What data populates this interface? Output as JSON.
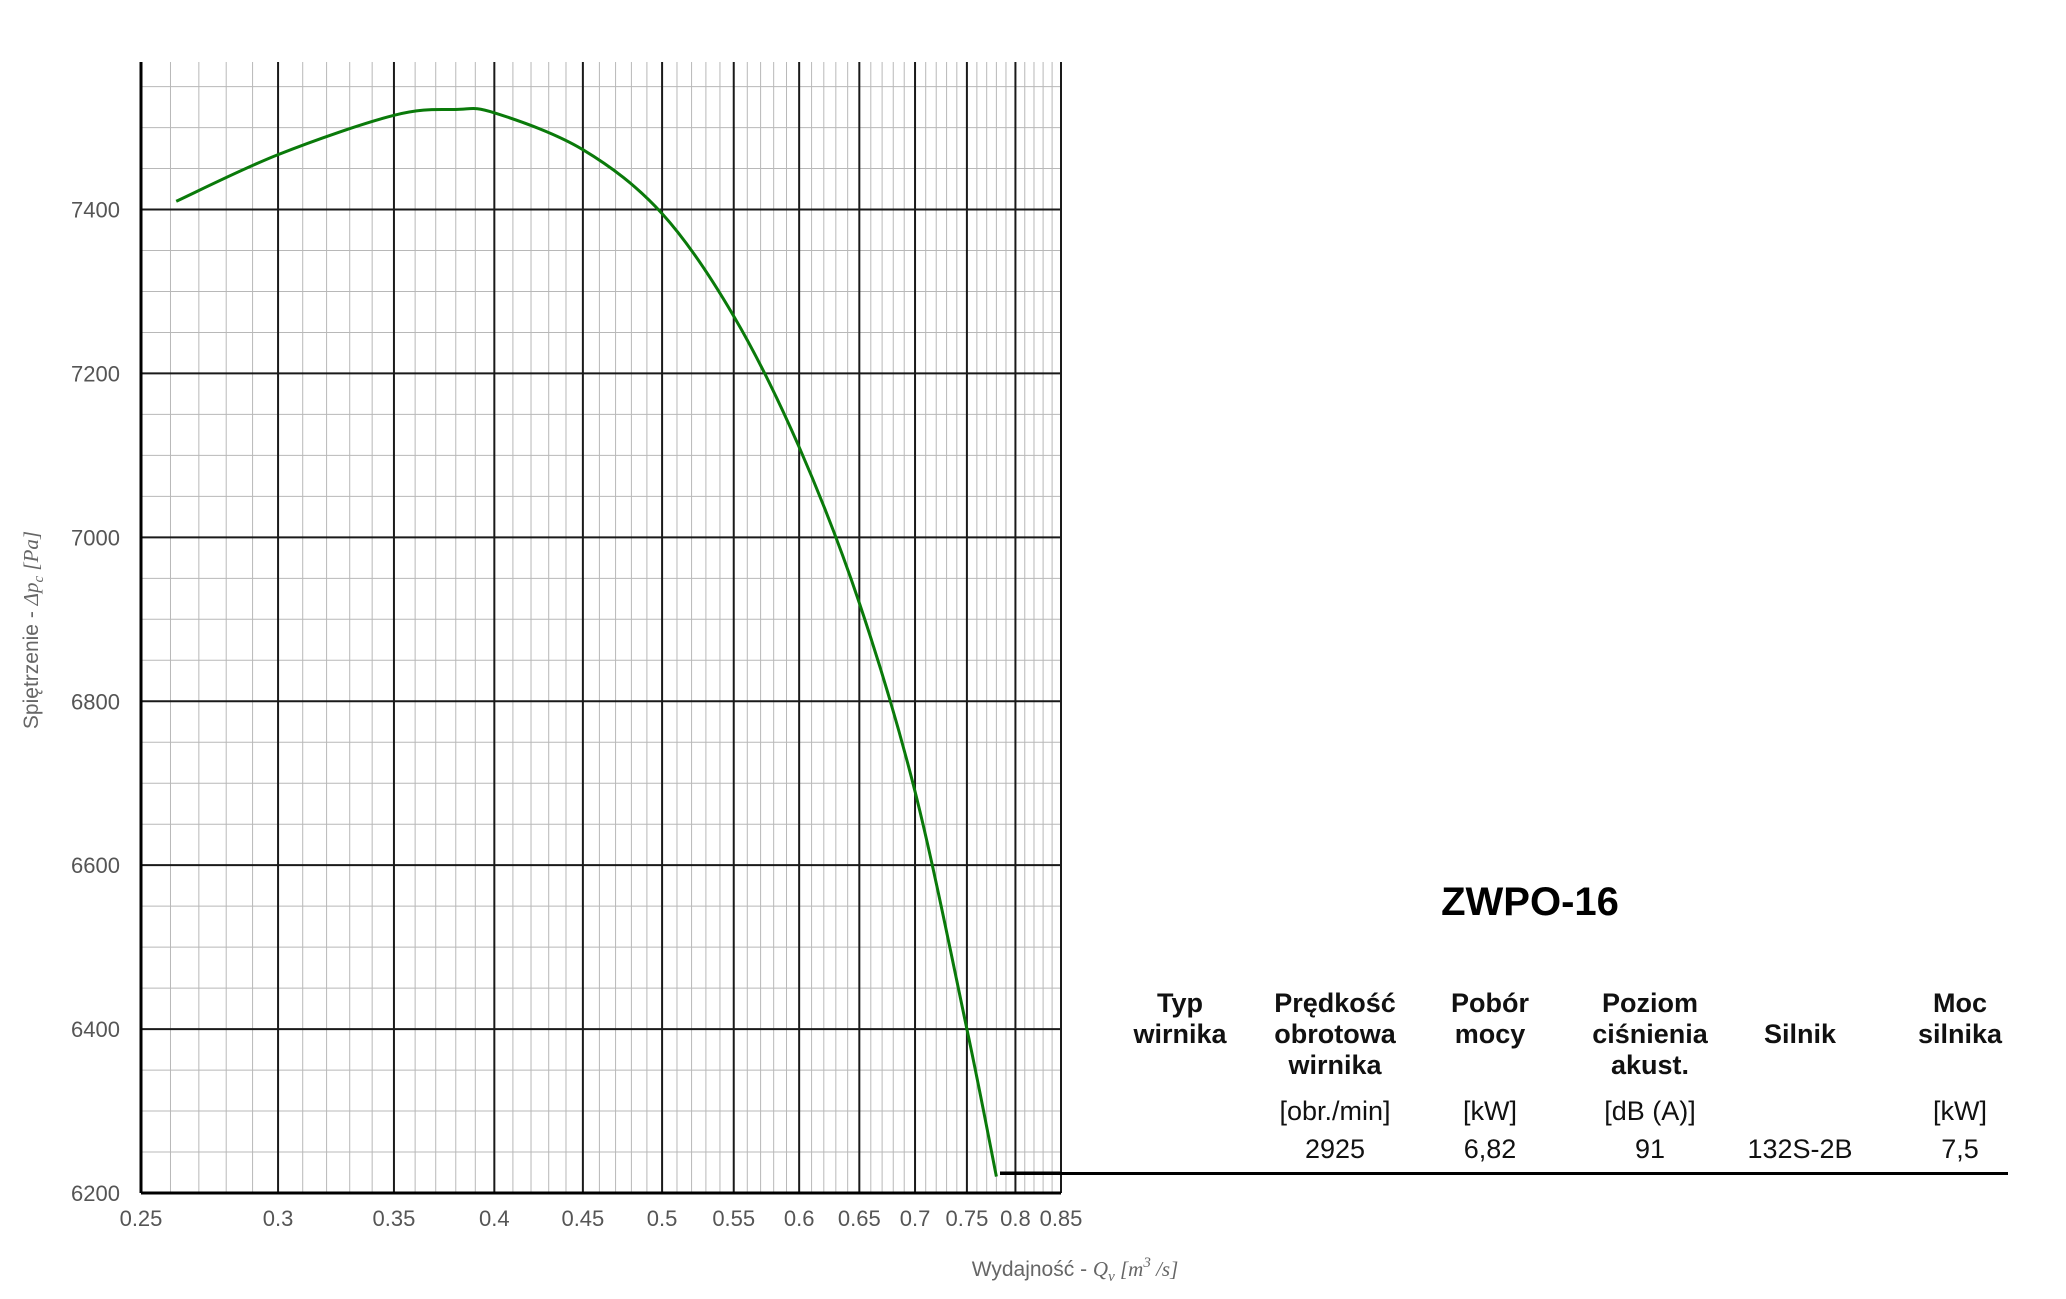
{
  "chart_data": {
    "type": "line",
    "x_scale": "log",
    "xlabel_text": "Wydajność - ",
    "xlabel_symbol": "Q",
    "xlabel_sub": "v",
    "xlabel_unit_open": " [m",
    "xlabel_unit_sup": "3",
    "xlabel_unit_close": " /s]",
    "ylabel_text": "Spiętrzenie - ",
    "ylabel_symbol": "Δp",
    "ylabel_sub": "c",
    "ylabel_unit": " [Pa]",
    "xlim": [
      0.25,
      0.85
    ],
    "ylim": [
      6200,
      7580
    ],
    "x_ticks": [
      0.25,
      0.3,
      0.35,
      0.4,
      0.45,
      0.5,
      0.55,
      0.6,
      0.65,
      0.7,
      0.75,
      0.8,
      0.85
    ],
    "x_tick_labels": [
      "0.25",
      "0.3",
      "0.35",
      "0.4",
      "0.45",
      "0.5",
      "0.55",
      "0.6",
      "0.65",
      "0.7",
      "0.75",
      "0.8",
      "0.85"
    ],
    "y_ticks": [
      6200,
      6400,
      6600,
      6800,
      7000,
      7200,
      7400
    ],
    "y_tick_labels": [
      "6200",
      "6400",
      "6600",
      "6800",
      "7000",
      "7200",
      "7400"
    ],
    "grid": true,
    "series": [
      {
        "color": "#0a7a0a",
        "x": [
          0.262,
          0.3,
          0.35,
          0.38,
          0.4,
          0.45,
          0.5,
          0.55,
          0.6,
          0.65,
          0.7,
          0.75,
          0.78
        ],
        "y": [
          7410,
          7467,
          7515,
          7522,
          7518,
          7473,
          7395,
          7270,
          7110,
          6920,
          6690,
          6400,
          6220
        ]
      }
    ]
  },
  "title": "ZWPO-16",
  "table": {
    "headers": [
      "Typ\nwirnika",
      "Prędkość\nobrotowa\nwirnika",
      "Pobór\nmocy",
      "Poziom\nciśnienia\nakust.",
      "Silnik",
      "Moc\nsilnika"
    ],
    "units": [
      "",
      "[obr./min]",
      "[kW]",
      "[dB (A)]",
      "",
      "[kW]"
    ],
    "values": [
      "",
      "2925",
      "6,82",
      "91",
      "132S-2B",
      "7,5"
    ]
  }
}
